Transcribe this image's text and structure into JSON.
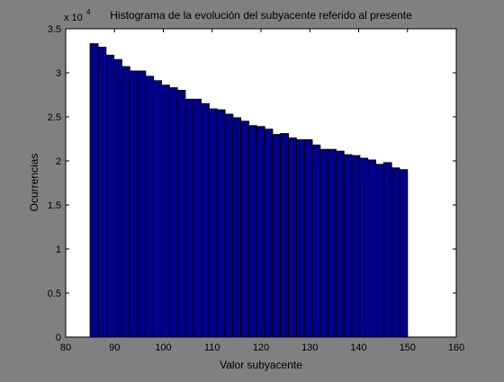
{
  "chart_data": {
    "type": "bar",
    "title": "Histograma de la evolución del subyacente referido al presente",
    "xlabel": "Valor subyacente",
    "ylabel": "Ocurrencias",
    "y_multiplier": {
      "base": "x 10",
      "exponent": "4"
    },
    "xlim": [
      80,
      160
    ],
    "ylim": [
      0,
      35000
    ],
    "xticks": [
      80,
      90,
      100,
      110,
      120,
      130,
      140,
      150,
      160
    ],
    "yticks": [
      0,
      5000,
      10000,
      15000,
      20000,
      25000,
      30000,
      35000
    ],
    "xtick_labels": [
      "80",
      "90",
      "100",
      "110",
      "120",
      "130",
      "140",
      "150",
      "160"
    ],
    "ytick_labels": [
      "0",
      "0.5",
      "1",
      "1.5",
      "2",
      "2.5",
      "3",
      "3.5"
    ],
    "bin_start": 85,
    "bin_width": 1.625,
    "values": [
      33300,
      32900,
      32000,
      31500,
      30700,
      30200,
      30200,
      29600,
      29100,
      28600,
      28300,
      28000,
      27000,
      27000,
      26500,
      25900,
      25800,
      25300,
      24900,
      24500,
      24000,
      23900,
      23600,
      23000,
      23100,
      22600,
      22400,
      22400,
      21800,
      21300,
      21300,
      21100,
      20700,
      20600,
      20300,
      20100,
      19600,
      19800,
      19200,
      19000
    ],
    "bar_color": "#00008b",
    "grid": false
  }
}
